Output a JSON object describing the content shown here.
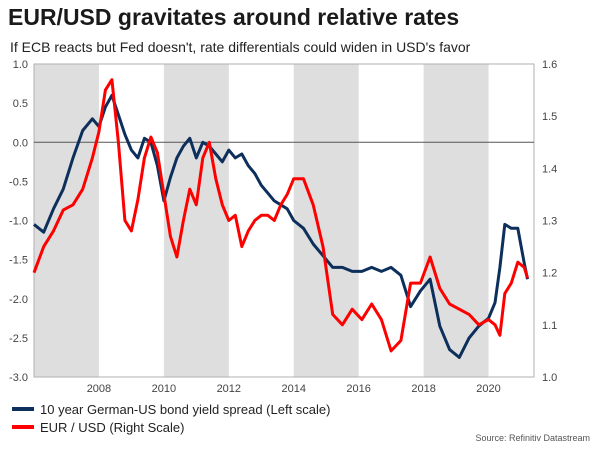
{
  "header": {
    "title": "EUR/USD gravitates around relative rates",
    "subtitle": "If ECB reacts but Fed doesn't, rate differentials could widen in USD's favor"
  },
  "source": "Source: Refinitiv Datastream",
  "colors": {
    "spread": "#0d2f5b",
    "eurusd": "#ff0000",
    "shade": "#dedede",
    "zero_line": "#555555"
  },
  "chart_data": {
    "type": "line",
    "title": "EUR/USD gravitates around relative rates",
    "x_range": [
      2006.0,
      2021.4
    ],
    "x_ticks": [
      2008,
      2010,
      2012,
      2014,
      2016,
      2018,
      2020
    ],
    "shaded_years": [
      [
        2006.0,
        2008.0
      ],
      [
        2010.0,
        2012.0
      ],
      [
        2014.0,
        2016.0
      ],
      [
        2018.0,
        2020.0
      ]
    ],
    "left_axis": {
      "range": [
        -3.0,
        1.0
      ],
      "ticks": [
        1.0,
        0.5,
        0.0,
        -0.5,
        -1.0,
        -1.5,
        -2.0,
        -2.5,
        -3.0
      ]
    },
    "right_axis": {
      "range": [
        1.0,
        1.6
      ],
      "ticks": [
        1.6,
        1.5,
        1.4,
        1.3,
        1.2,
        1.1,
        1.0
      ]
    },
    "series": [
      {
        "name": "10 year German-US bond yield spread (Left scale)",
        "axis": "left",
        "x": [
          2006.0,
          2006.3,
          2006.6,
          2006.9,
          2007.2,
          2007.5,
          2007.8,
          2008.0,
          2008.2,
          2008.4,
          2008.6,
          2008.8,
          2009.0,
          2009.2,
          2009.4,
          2009.6,
          2009.8,
          2010.0,
          2010.2,
          2010.4,
          2010.6,
          2010.8,
          2011.0,
          2011.2,
          2011.4,
          2011.6,
          2011.8,
          2012.0,
          2012.2,
          2012.4,
          2012.6,
          2012.8,
          2013.0,
          2013.2,
          2013.4,
          2013.6,
          2013.8,
          2014.0,
          2014.3,
          2014.6,
          2014.9,
          2015.2,
          2015.5,
          2015.8,
          2016.1,
          2016.4,
          2016.7,
          2017.0,
          2017.3,
          2017.6,
          2017.9,
          2018.2,
          2018.5,
          2018.8,
          2019.1,
          2019.4,
          2019.7,
          2020.0,
          2020.2,
          2020.35,
          2020.5,
          2020.7,
          2020.9,
          2021.1,
          2021.2
        ],
        "values": [
          -1.05,
          -1.15,
          -0.85,
          -0.6,
          -0.2,
          0.15,
          0.3,
          0.2,
          0.45,
          0.6,
          0.35,
          0.1,
          -0.1,
          -0.2,
          0.05,
          0.0,
          -0.3,
          -0.75,
          -0.45,
          -0.2,
          -0.05,
          0.05,
          -0.2,
          0.0,
          -0.05,
          -0.15,
          -0.25,
          -0.1,
          -0.2,
          -0.15,
          -0.3,
          -0.4,
          -0.55,
          -0.65,
          -0.75,
          -0.8,
          -0.85,
          -1.0,
          -1.1,
          -1.3,
          -1.45,
          -1.6,
          -1.6,
          -1.65,
          -1.65,
          -1.6,
          -1.65,
          -1.6,
          -1.7,
          -2.1,
          -1.9,
          -1.75,
          -2.35,
          -2.65,
          -2.75,
          -2.5,
          -2.35,
          -2.25,
          -2.05,
          -1.6,
          -1.05,
          -1.1,
          -1.1,
          -1.55,
          -1.75
        ]
      },
      {
        "name": "EUR / USD (Right Scale)",
        "axis": "right",
        "x": [
          2006.0,
          2006.3,
          2006.6,
          2006.9,
          2007.2,
          2007.5,
          2007.8,
          2008.0,
          2008.2,
          2008.4,
          2008.6,
          2008.8,
          2009.0,
          2009.2,
          2009.4,
          2009.6,
          2009.8,
          2010.0,
          2010.2,
          2010.4,
          2010.6,
          2010.8,
          2011.0,
          2011.2,
          2011.4,
          2011.6,
          2011.8,
          2012.0,
          2012.2,
          2012.4,
          2012.6,
          2012.8,
          2013.0,
          2013.2,
          2013.4,
          2013.6,
          2013.8,
          2014.0,
          2014.3,
          2014.6,
          2014.9,
          2015.2,
          2015.5,
          2015.8,
          2016.1,
          2016.4,
          2016.7,
          2017.0,
          2017.3,
          2017.6,
          2017.9,
          2018.2,
          2018.5,
          2018.8,
          2019.1,
          2019.4,
          2019.7,
          2020.0,
          2020.2,
          2020.35,
          2020.5,
          2020.7,
          2020.9,
          2021.1,
          2021.2
        ],
        "values": [
          1.2,
          1.25,
          1.28,
          1.32,
          1.33,
          1.36,
          1.42,
          1.47,
          1.55,
          1.57,
          1.45,
          1.3,
          1.28,
          1.34,
          1.42,
          1.46,
          1.43,
          1.35,
          1.27,
          1.23,
          1.3,
          1.36,
          1.33,
          1.42,
          1.45,
          1.38,
          1.33,
          1.3,
          1.31,
          1.25,
          1.28,
          1.3,
          1.31,
          1.31,
          1.3,
          1.33,
          1.35,
          1.38,
          1.38,
          1.33,
          1.25,
          1.12,
          1.1,
          1.13,
          1.11,
          1.14,
          1.11,
          1.05,
          1.07,
          1.18,
          1.18,
          1.23,
          1.17,
          1.14,
          1.13,
          1.12,
          1.1,
          1.11,
          1.1,
          1.08,
          1.16,
          1.18,
          1.22,
          1.21,
          1.19
        ]
      }
    ]
  }
}
